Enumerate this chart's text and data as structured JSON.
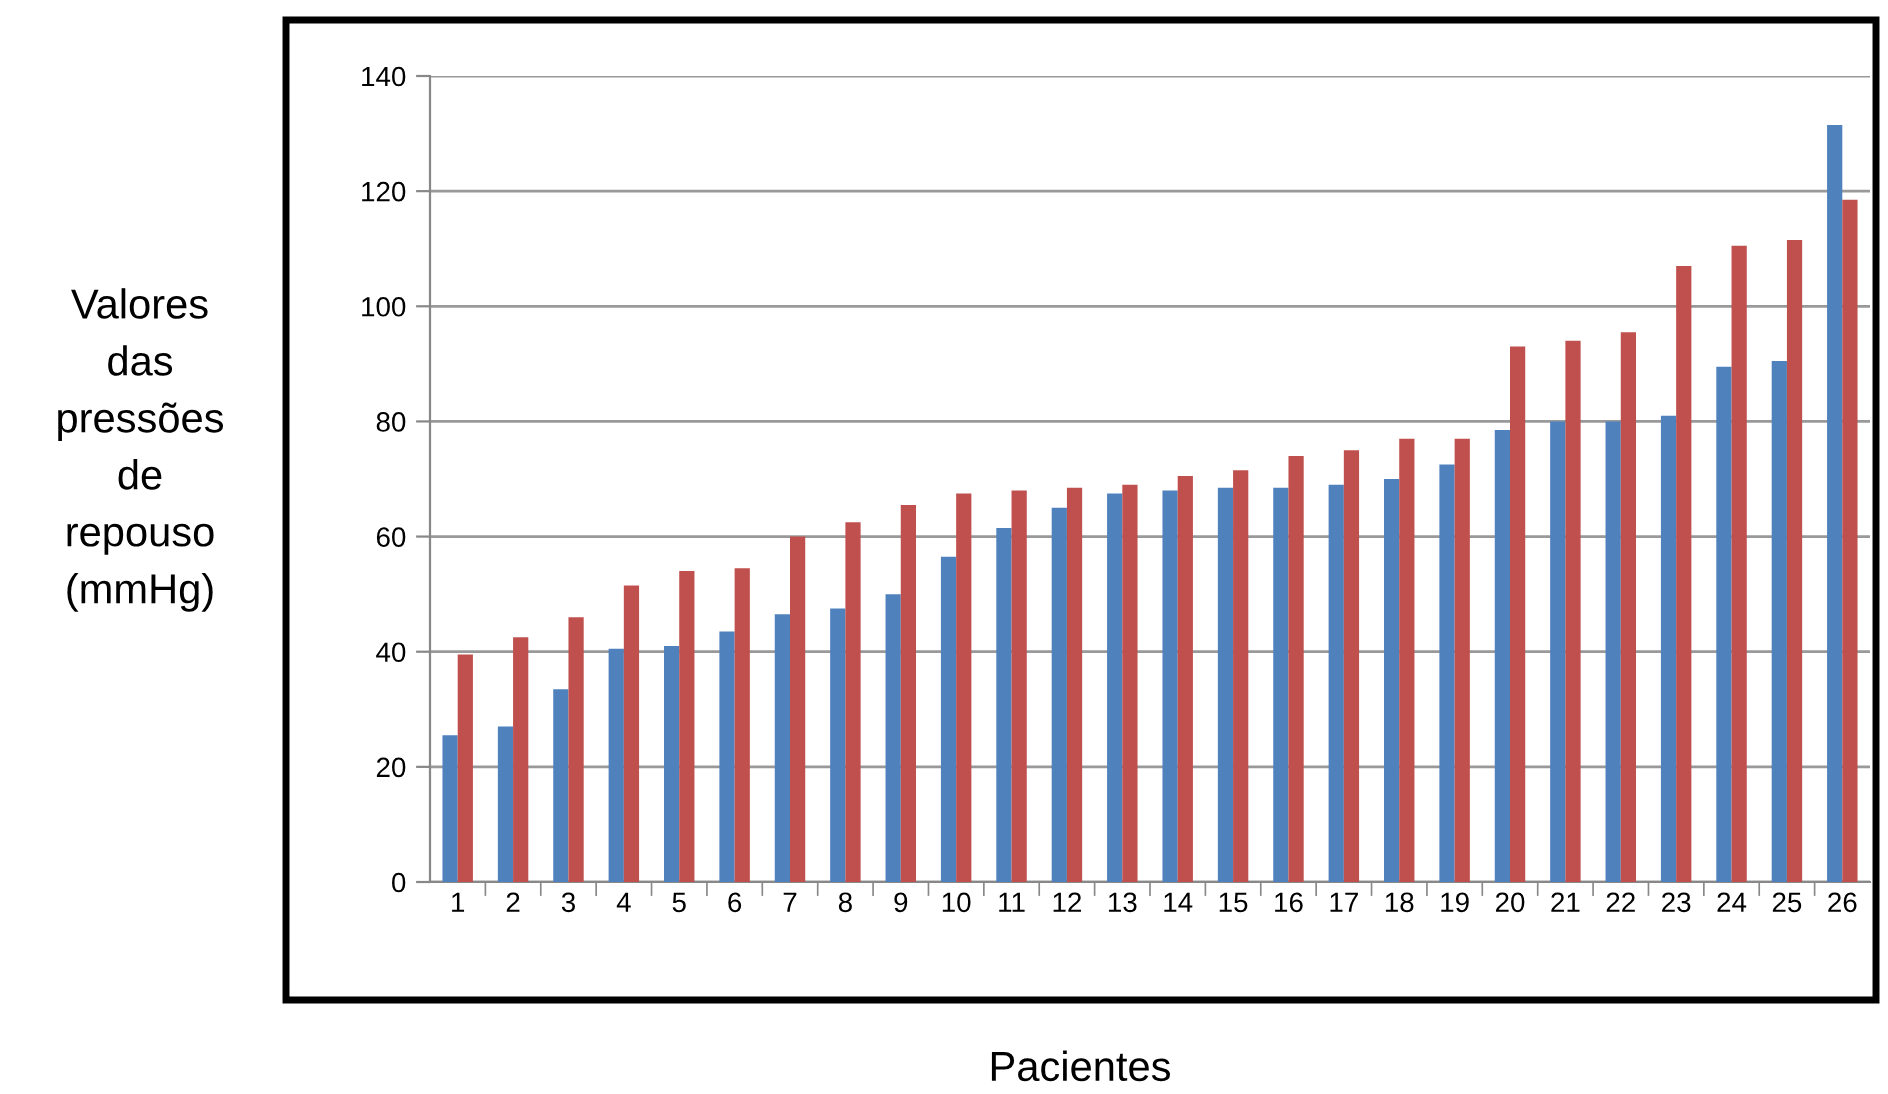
{
  "chart_data": {
    "type": "bar",
    "xlabel": "Pacientes",
    "ylabel": "Valores\ndas\npressões\nde\nrepouso\n(mmHg)",
    "categories": [
      "1",
      "2",
      "3",
      "4",
      "5",
      "6",
      "7",
      "8",
      "9",
      "10",
      "11",
      "12",
      "13",
      "14",
      "15",
      "16",
      "17",
      "18",
      "19",
      "20",
      "21",
      "22",
      "23",
      "24",
      "25",
      "26"
    ],
    "series": [
      {
        "color": "#4f81bd",
        "values": [
          25.5,
          27,
          33.5,
          40.5,
          41,
          43.5,
          46.5,
          47.5,
          50,
          56.5,
          61.5,
          65,
          67.5,
          68,
          68.5,
          68.5,
          69,
          70,
          72.5,
          78.5,
          80,
          80,
          81,
          89.5,
          90.5,
          131.5
        ]
      },
      {
        "color": "#c0504d",
        "values": [
          39.5,
          42.5,
          46,
          51.5,
          54,
          54.5,
          60,
          62.5,
          65.5,
          67.5,
          68,
          68.5,
          69,
          70.5,
          71.5,
          74,
          75,
          77,
          77,
          93,
          94,
          95.5,
          107,
          110.5,
          111.5,
          118.5
        ]
      }
    ],
    "ylim": [
      0,
      140
    ],
    "yticks": [
      0,
      20,
      40,
      60,
      80,
      100,
      120,
      140
    ],
    "grid": "y",
    "legend": false
  }
}
